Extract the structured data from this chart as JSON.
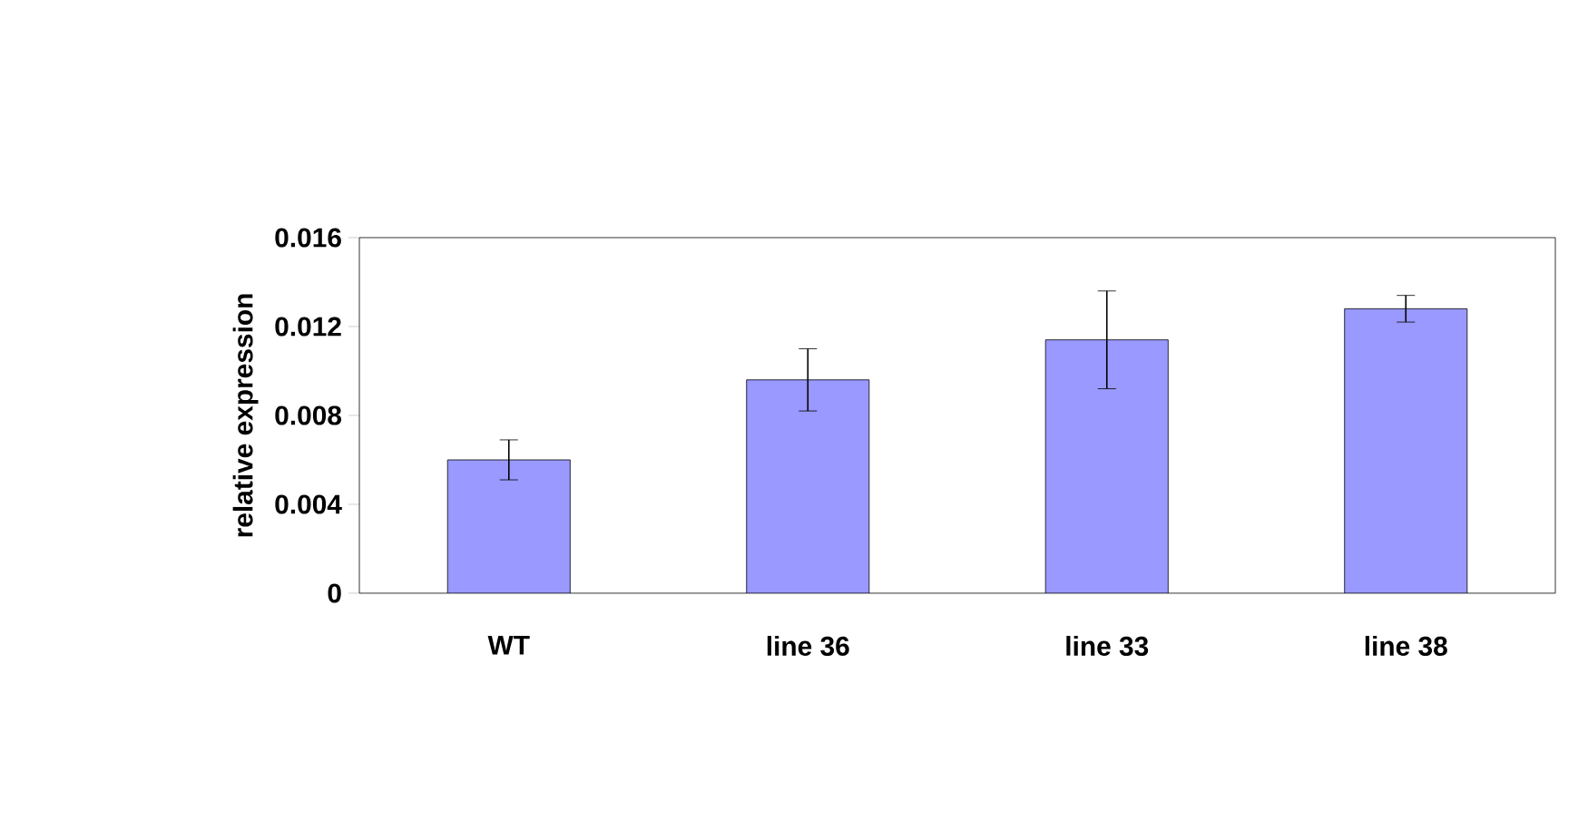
{
  "chart_data": {
    "type": "bar",
    "ylabel": "relative expression",
    "categories": [
      "WT",
      "line 36",
      "line 33",
      "line 38"
    ],
    "values": [
      0.006,
      0.0096,
      0.0114,
      0.0128
    ],
    "errors": [
      0.0009,
      0.0014,
      0.0022,
      0.0006
    ],
    "color": "#9999ff",
    "ylim": [
      0,
      0.016
    ],
    "yticks": [
      0,
      0.004,
      0.008,
      0.012,
      0.016
    ],
    "grid": false
  }
}
